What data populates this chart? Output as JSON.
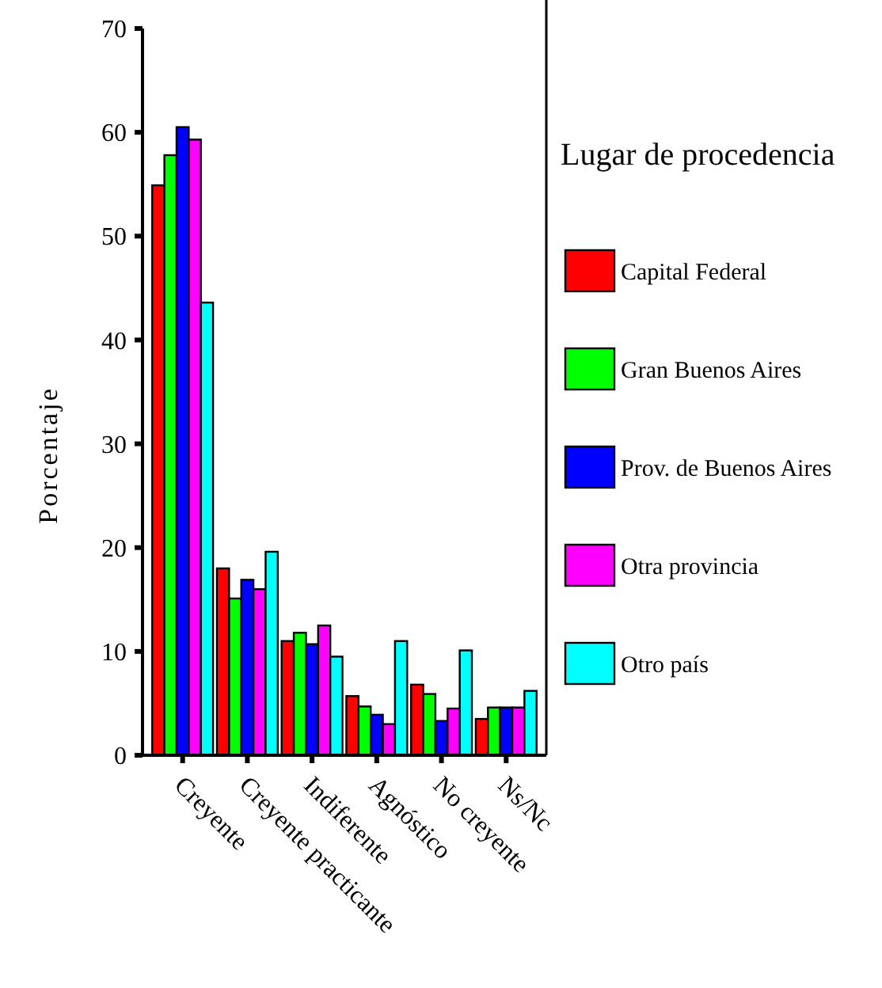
{
  "chart_data": {
    "type": "bar",
    "ylabel": "Porcentaje",
    "legend_title": "Lugar de procedencia",
    "legend": "right",
    "categories": [
      "Creyente",
      "Creyente practicante",
      "Indiferente",
      "Agnóstico",
      "No creyente",
      "Ns/Nc"
    ],
    "ylim": [
      0,
      70
    ],
    "yticks": [
      0,
      10,
      20,
      30,
      40,
      50,
      60,
      70
    ],
    "series": [
      {
        "name": "Capital Federal",
        "color": "#ff0000",
        "values": [
          54.9,
          18.0,
          11.0,
          5.7,
          6.8,
          3.5
        ]
      },
      {
        "name": "Gran Buenos Aires",
        "color": "#00ff00",
        "values": [
          57.8,
          15.1,
          11.8,
          4.7,
          5.9,
          4.6
        ]
      },
      {
        "name": "Prov. de Buenos Aires",
        "color": "#0000ff",
        "values": [
          60.5,
          16.9,
          10.7,
          3.9,
          3.3,
          4.6
        ]
      },
      {
        "name": "Otra provincia",
        "color": "#ff00ff",
        "values": [
          59.3,
          16.0,
          12.5,
          3.0,
          4.5,
          4.6
        ]
      },
      {
        "name": "Otro país",
        "color": "#00ffff",
        "values": [
          43.6,
          19.6,
          9.5,
          11.0,
          10.1,
          6.2
        ]
      }
    ]
  }
}
